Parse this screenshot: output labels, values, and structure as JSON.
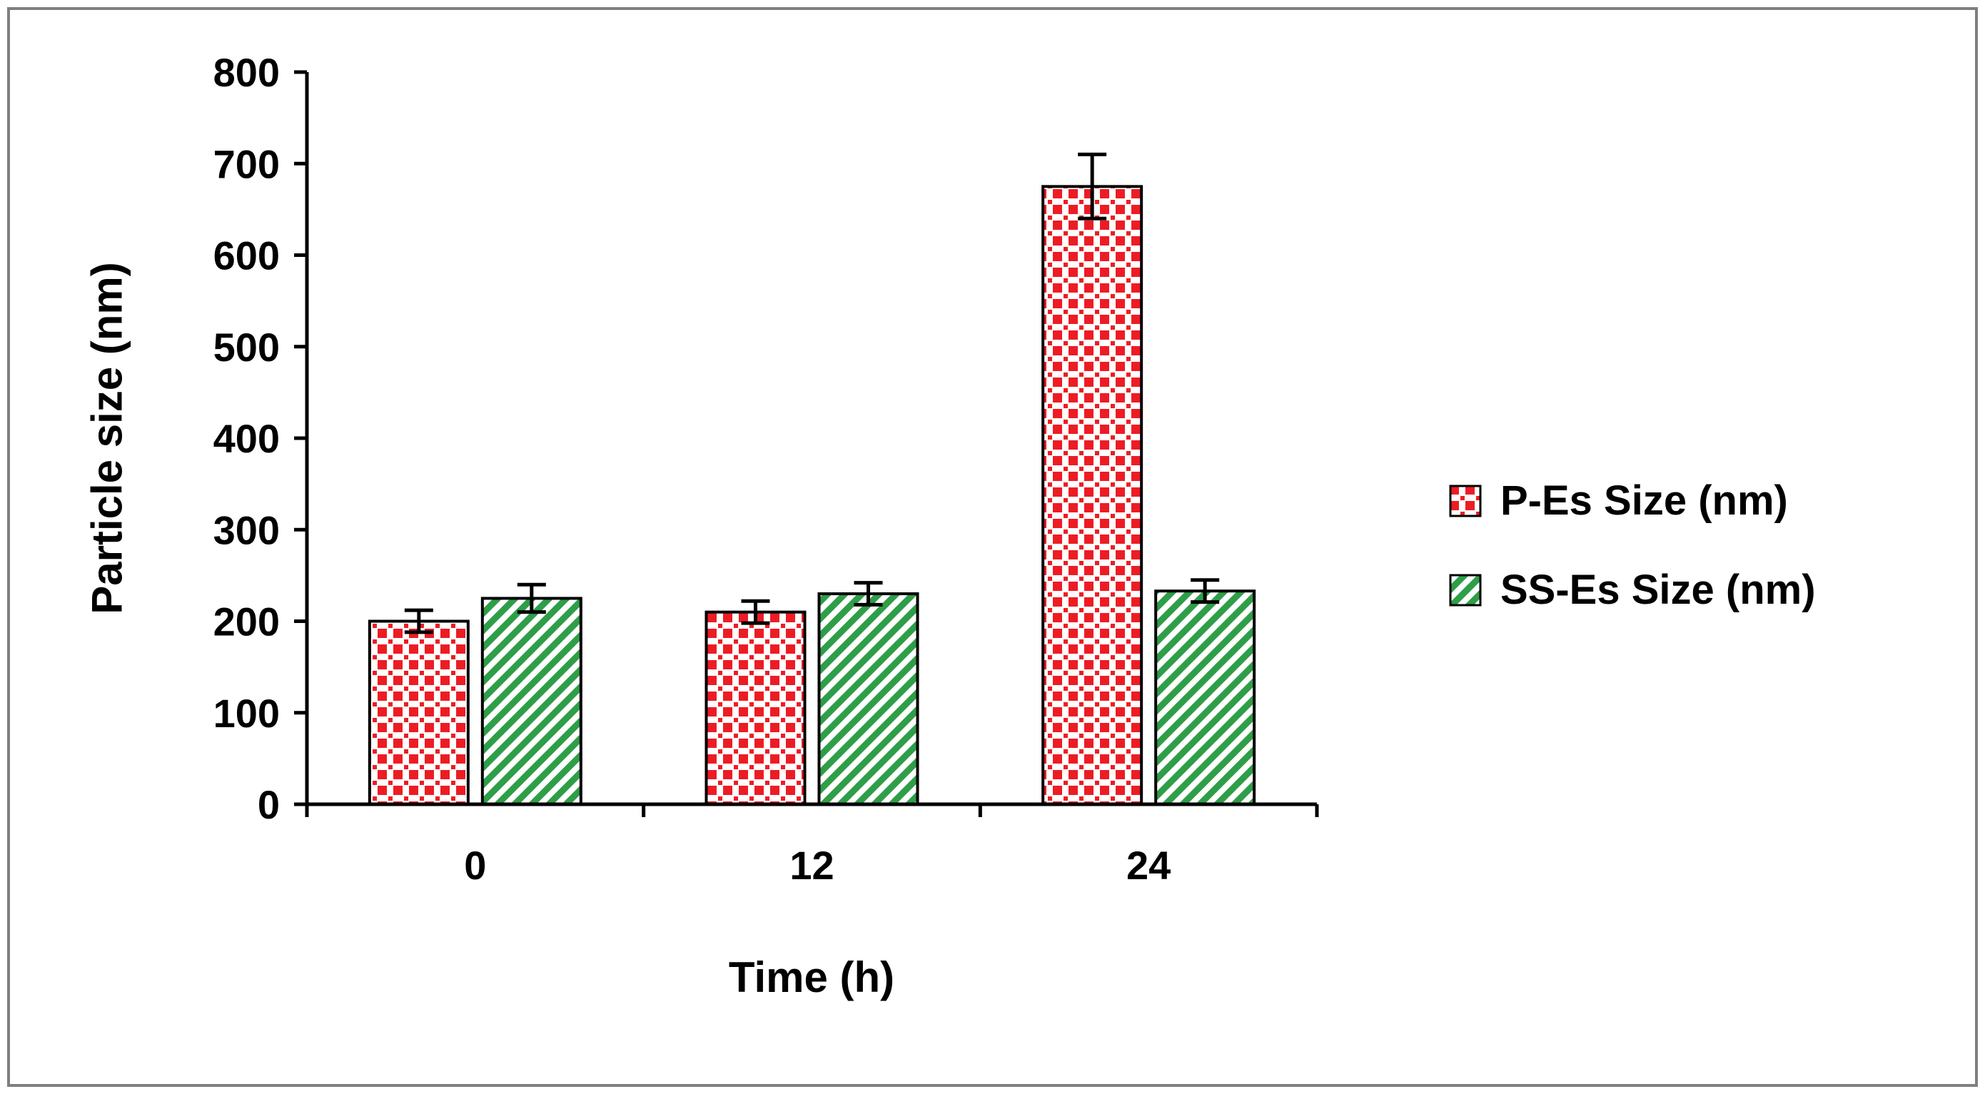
{
  "figure": {
    "background": "#ffffff",
    "border_color": "#7f7f7f",
    "text_color": "#000000"
  },
  "chart_data": {
    "type": "bar",
    "title": "",
    "xlabel": "Time (h)",
    "ylabel": "Particle size (nm)",
    "categories": [
      "0",
      "12",
      "24"
    ],
    "series": [
      {
        "name": "P-Es Size (nm)",
        "color": "#ed1c24",
        "pattern": "red-check",
        "values": [
          200,
          210,
          675
        ],
        "errors": [
          12,
          12,
          35
        ]
      },
      {
        "name": "SS-Es Size (nm)",
        "color": "#2e9e49",
        "pattern": "green-diagonal-stripe",
        "values": [
          225,
          230,
          233
        ],
        "errors": [
          15,
          12,
          12
        ]
      }
    ],
    "ylim": [
      0,
      800
    ],
    "ytick_step": 100,
    "grid": false,
    "error_bars": true,
    "legend_position": "right"
  }
}
